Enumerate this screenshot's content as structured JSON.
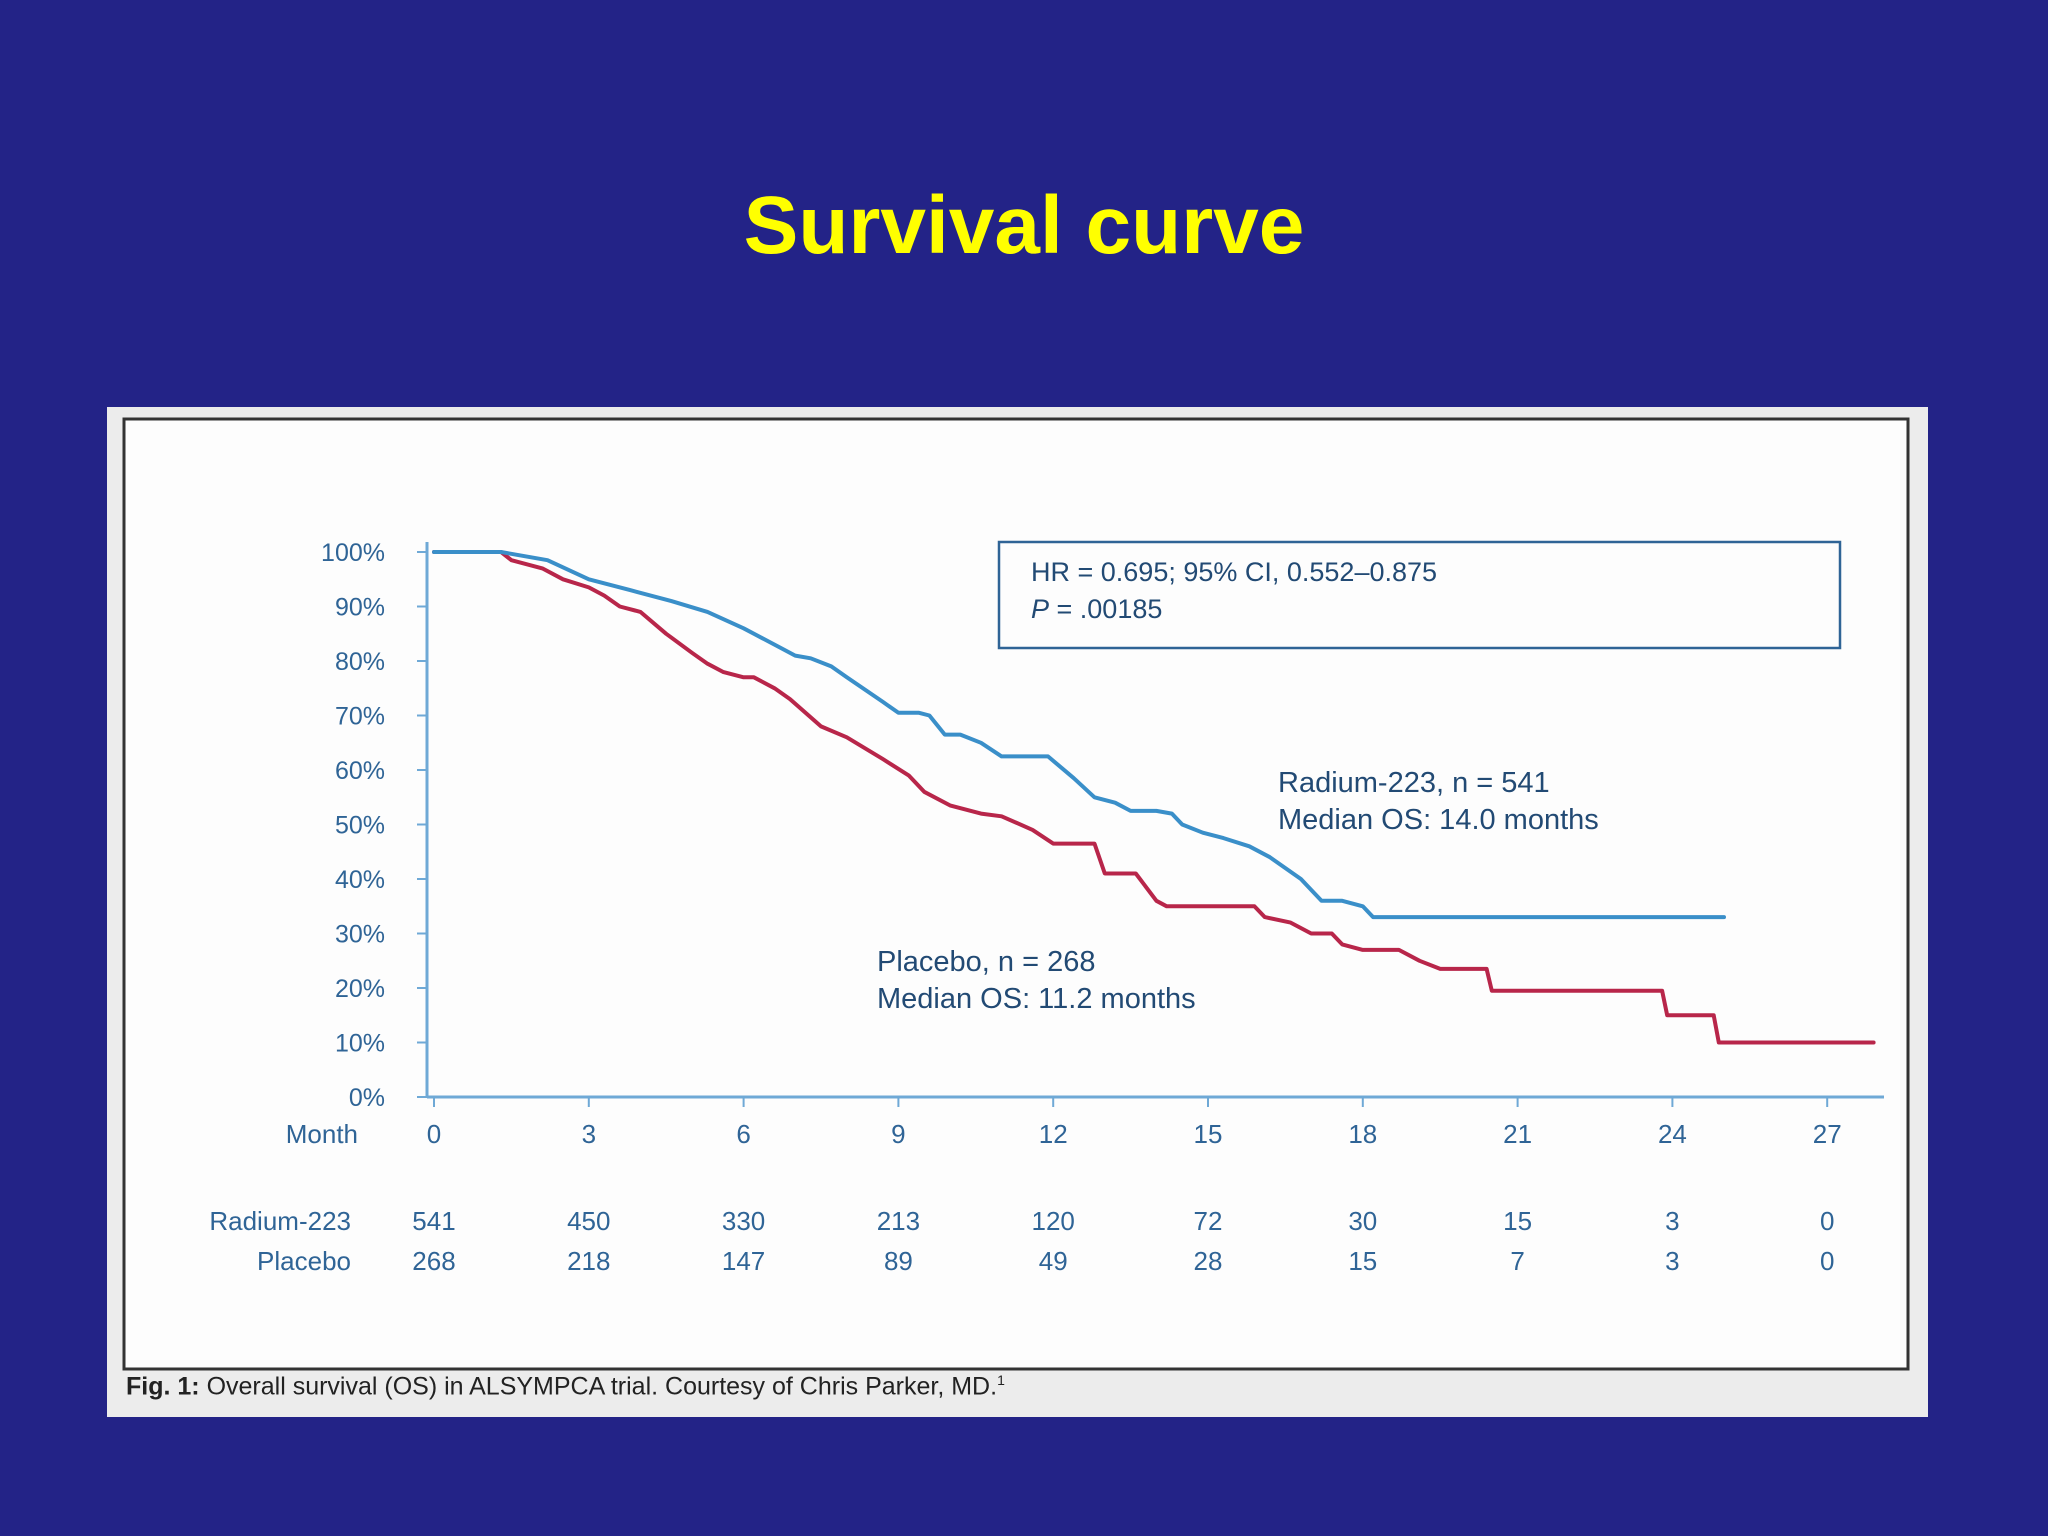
{
  "slide": {
    "title": "Survival curve",
    "title_color": "#ffff00",
    "background": "#232387"
  },
  "caption": {
    "label": "Fig. 1:",
    "text": "Overall survival (OS) in ALSYMPCA trial. Courtesy of Chris Parker, MD.",
    "superscript": "1"
  },
  "chart_data": {
    "type": "line",
    "step": true,
    "title": "",
    "xlabel": "Month",
    "ylabel": "",
    "xlim": [
      0,
      27
    ],
    "ylim": [
      0,
      100
    ],
    "x_ticks": [
      0,
      3,
      6,
      9,
      12,
      15,
      18,
      21,
      24,
      27
    ],
    "y_ticks": [
      0,
      10,
      20,
      30,
      40,
      50,
      60,
      70,
      80,
      90,
      100
    ],
    "y_tick_labels": [
      "0%",
      "10%",
      "20%",
      "30%",
      "40%",
      "50%",
      "60%",
      "70%",
      "80%",
      "90%",
      "100%"
    ],
    "grid": false,
    "stats_box": {
      "line1": "HR = 0.695; 95% CI, 0.552–0.875",
      "line2_prefix": "P",
      "line2_rest": " = .00185"
    },
    "series": [
      {
        "name": "Radium-223",
        "label_line1": "Radium-223, n = 541",
        "label_line2": "Median OS: 14.0 months",
        "color": "#3a8fc9",
        "points": [
          [
            0,
            100
          ],
          [
            1.3,
            100
          ],
          [
            2.2,
            98.5
          ],
          [
            3,
            95
          ],
          [
            3.8,
            93
          ],
          [
            4.6,
            91
          ],
          [
            5.3,
            89
          ],
          [
            6,
            86
          ],
          [
            6.7,
            82.5
          ],
          [
            7,
            81
          ],
          [
            7.3,
            80.5
          ],
          [
            7.7,
            79
          ],
          [
            8,
            77
          ],
          [
            8.7,
            72.5
          ],
          [
            9,
            70.5
          ],
          [
            9.4,
            70.5
          ],
          [
            9.6,
            70
          ],
          [
            9.9,
            66.5
          ],
          [
            10.2,
            66.5
          ],
          [
            10.6,
            65
          ],
          [
            11,
            62.5
          ],
          [
            11.9,
            62.5
          ],
          [
            12.4,
            58.5
          ],
          [
            12.8,
            55
          ],
          [
            13.2,
            54
          ],
          [
            13.5,
            52.5
          ],
          [
            14,
            52.5
          ],
          [
            14.3,
            52
          ],
          [
            14.5,
            50
          ],
          [
            14.9,
            48.5
          ],
          [
            15.3,
            47.5
          ],
          [
            15.8,
            46
          ],
          [
            16.2,
            44
          ],
          [
            16.8,
            40
          ],
          [
            17.2,
            36
          ],
          [
            17.6,
            36
          ],
          [
            18,
            35
          ],
          [
            18.2,
            33
          ],
          [
            25,
            33
          ]
        ],
        "at_risk": [
          541,
          450,
          330,
          213,
          120,
          72,
          30,
          15,
          3,
          0
        ]
      },
      {
        "name": "Placebo",
        "label_line1": "Placebo, n = 268",
        "label_line2": "Median OS: 11.2 months",
        "color": "#b8264a",
        "points": [
          [
            0,
            100
          ],
          [
            1.3,
            100
          ],
          [
            1.5,
            98.5
          ],
          [
            2.1,
            97
          ],
          [
            2.5,
            95
          ],
          [
            3,
            93.5
          ],
          [
            3.3,
            92
          ],
          [
            3.6,
            90
          ],
          [
            4,
            89
          ],
          [
            4.5,
            85
          ],
          [
            5,
            81.5
          ],
          [
            5.3,
            79.5
          ],
          [
            5.6,
            78
          ],
          [
            6,
            77
          ],
          [
            6.2,
            77
          ],
          [
            6.6,
            75
          ],
          [
            6.9,
            73
          ],
          [
            7.2,
            70.5
          ],
          [
            7.5,
            68
          ],
          [
            8,
            66
          ],
          [
            8.7,
            62
          ],
          [
            9.2,
            59
          ],
          [
            9.5,
            56
          ],
          [
            10,
            53.5
          ],
          [
            10.6,
            52
          ],
          [
            11,
            51.5
          ],
          [
            11.6,
            49
          ],
          [
            12,
            46.5
          ],
          [
            12.8,
            46.5
          ],
          [
            13,
            41
          ],
          [
            13.6,
            41
          ],
          [
            14,
            36
          ],
          [
            14.2,
            35
          ],
          [
            15.9,
            35
          ],
          [
            16.1,
            33
          ],
          [
            16.6,
            32
          ],
          [
            17,
            30
          ],
          [
            17.4,
            30
          ],
          [
            17.6,
            28
          ],
          [
            18,
            27
          ],
          [
            18.7,
            27
          ],
          [
            19.1,
            25
          ],
          [
            19.5,
            23.5
          ],
          [
            20.4,
            23.5
          ],
          [
            20.5,
            19.5
          ],
          [
            23.8,
            19.5
          ],
          [
            23.9,
            15
          ],
          [
            24.8,
            15
          ],
          [
            24.9,
            10
          ],
          [
            27.9,
            10
          ]
        ],
        "at_risk": [
          268,
          218,
          147,
          89,
          49,
          28,
          15,
          7,
          3,
          0
        ]
      }
    ]
  }
}
